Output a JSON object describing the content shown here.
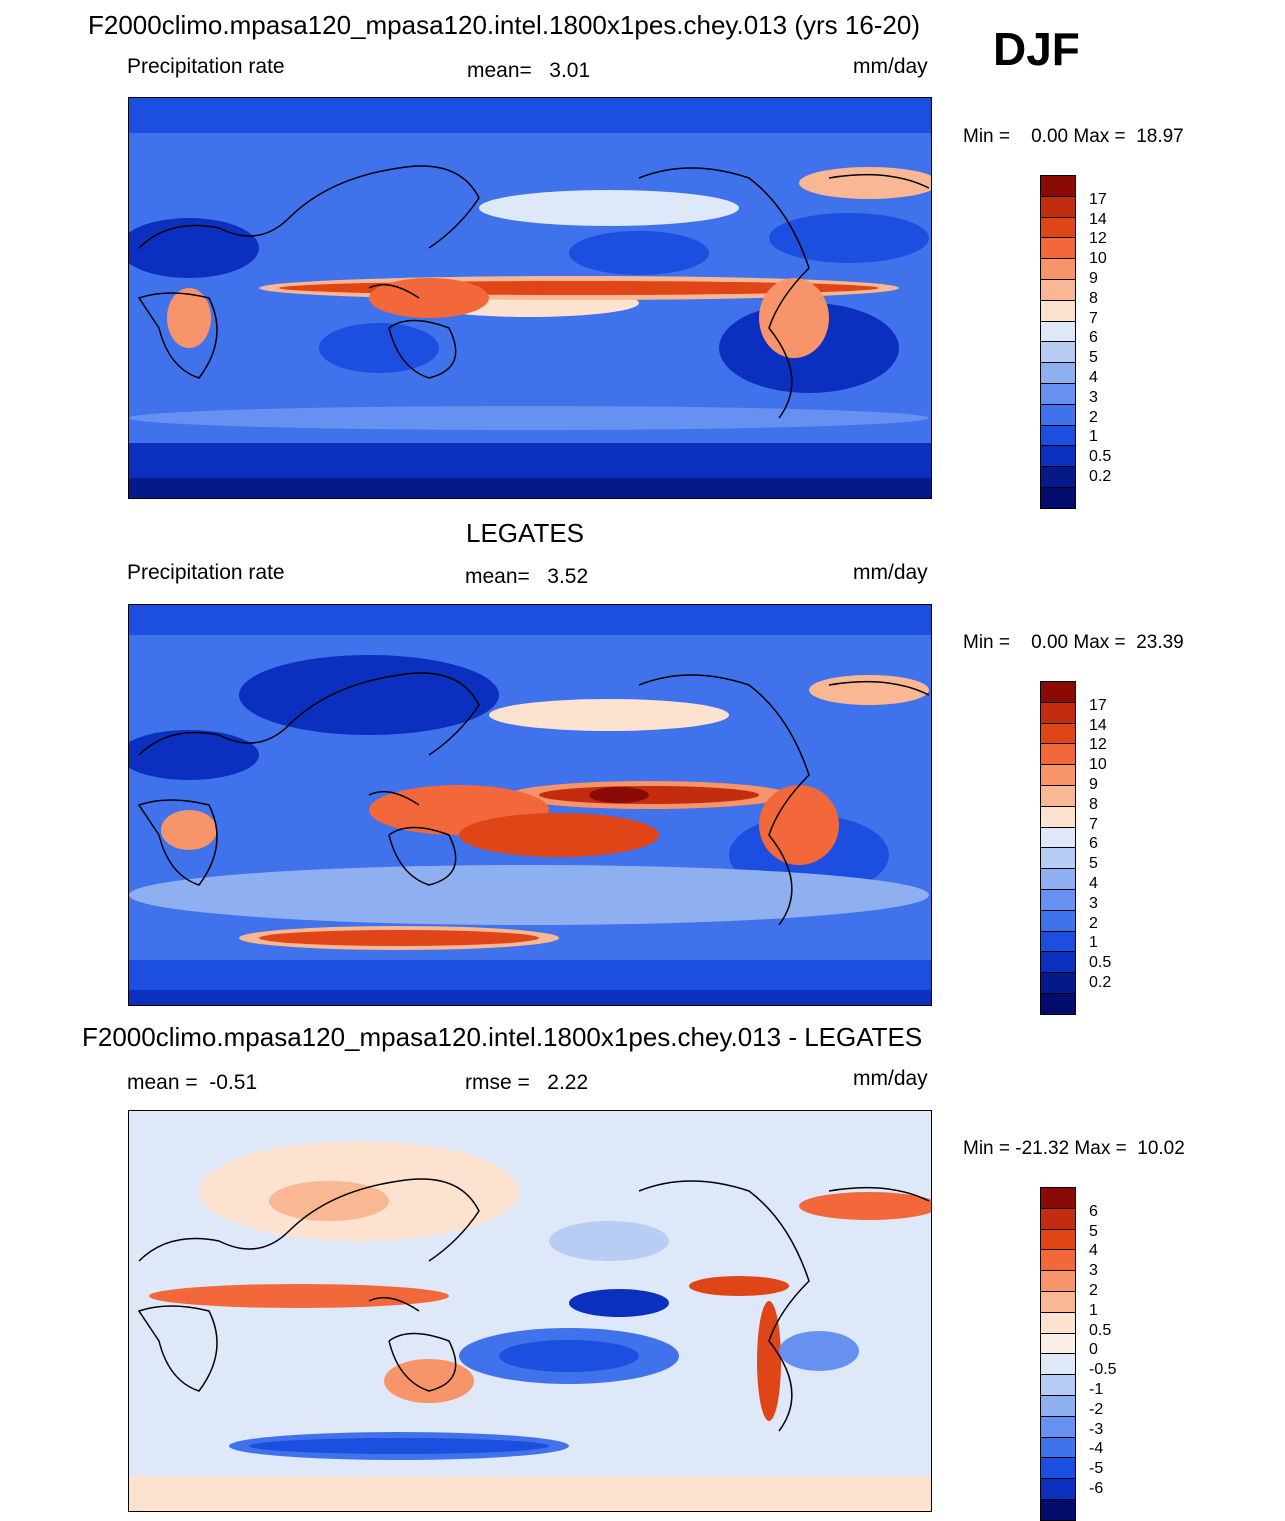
{
  "header": {
    "title": "F2000climo.mpasa120_mpasa120.intel.1800x1pes.chey.013 (yrs 16-20)",
    "season": "DJF"
  },
  "panels": [
    {
      "id": "model",
      "top_title": "",
      "left_label": "Precipitation rate",
      "center_label": "mean=   3.01",
      "right_label": "mm/day",
      "minmax": "Min =    0.00 Max =  18.97",
      "colorbar_labels": [
        "17",
        "14",
        "12",
        "10",
        "9",
        "8",
        "7",
        "6",
        "5",
        "4",
        "3",
        "2",
        "1",
        "0.5",
        "0.2"
      ],
      "colors": [
        "#8a0a06",
        "#c32c0e",
        "#e04517",
        "#f2683a",
        "#f7946a",
        "#f9b794",
        "#fde2cf",
        "#dfe8f8",
        "#b8cdf4",
        "#8fb0f0",
        "#6691f0",
        "#4072ec",
        "#1c4ee0",
        "#0b2fbf",
        "#06198b",
        "#020c6a"
      ]
    },
    {
      "id": "obs",
      "top_title": "LEGATES",
      "left_label": "Precipitation rate",
      "center_label": "mean=   3.52",
      "right_label": "mm/day",
      "minmax": "Min =    0.00 Max =  23.39",
      "colorbar_labels": [
        "17",
        "14",
        "12",
        "10",
        "9",
        "8",
        "7",
        "6",
        "5",
        "4",
        "3",
        "2",
        "1",
        "0.5",
        "0.2"
      ],
      "colors": [
        "#8a0a06",
        "#c32c0e",
        "#e04517",
        "#f2683a",
        "#f7946a",
        "#f9b794",
        "#fde2cf",
        "#dfe8f8",
        "#b8cdf4",
        "#8fb0f0",
        "#6691f0",
        "#4072ec",
        "#1c4ee0",
        "#0b2fbf",
        "#06198b",
        "#020c6a"
      ]
    },
    {
      "id": "diff",
      "top_title": "F2000climo.mpasa120_mpasa120.intel.1800x1pes.chey.013 - LEGATES",
      "left_label": "mean =  -0.51",
      "center_label": "rmse =   2.22",
      "right_label": "mm/day",
      "minmax": "Min = -21.32 Max =  10.02",
      "colorbar_labels": [
        "6",
        "5",
        "4",
        "3",
        "2",
        "1",
        "0.5",
        "0",
        "-0.5",
        "-1",
        "-2",
        "-3",
        "-4",
        "-5",
        "-6"
      ],
      "colors": [
        "#8a0a06",
        "#c32c0e",
        "#e04517",
        "#f2683a",
        "#f7946a",
        "#f9b794",
        "#fde2cf",
        "#fbeee6",
        "#dfe8f8",
        "#b8cdf4",
        "#8fb0f0",
        "#6691f0",
        "#4072ec",
        "#1c4ee0",
        "#0b2fbf",
        "#020c6a"
      ]
    }
  ],
  "chart_data": [
    {
      "type": "heatmap",
      "title": "F2000climo.mpasa120_mpasa120.intel.1800x1pes.chey.013 (yrs 16-20)",
      "subtitle": "Precipitation rate",
      "units": "mm/day",
      "mean": 3.01,
      "min": 0.0,
      "max": 18.97,
      "contour_levels": [
        0.2,
        0.5,
        1,
        2,
        3,
        4,
        5,
        6,
        7,
        8,
        9,
        10,
        12,
        14,
        17
      ]
    },
    {
      "type": "heatmap",
      "title": "LEGATES",
      "subtitle": "Precipitation rate",
      "units": "mm/day",
      "mean": 3.52,
      "min": 0.0,
      "max": 23.39,
      "contour_levels": [
        0.2,
        0.5,
        1,
        2,
        3,
        4,
        5,
        6,
        7,
        8,
        9,
        10,
        12,
        14,
        17
      ]
    },
    {
      "type": "heatmap",
      "title": "F2000climo.mpasa120_mpasa120.intel.1800x1pes.chey.013 - LEGATES",
      "units": "mm/day",
      "mean": -0.51,
      "rmse": 2.22,
      "min": -21.32,
      "max": 10.02,
      "contour_levels": [
        -6,
        -5,
        -4,
        -3,
        -2,
        -1,
        -0.5,
        0,
        0.5,
        1,
        2,
        3,
        4,
        5,
        6
      ]
    }
  ]
}
